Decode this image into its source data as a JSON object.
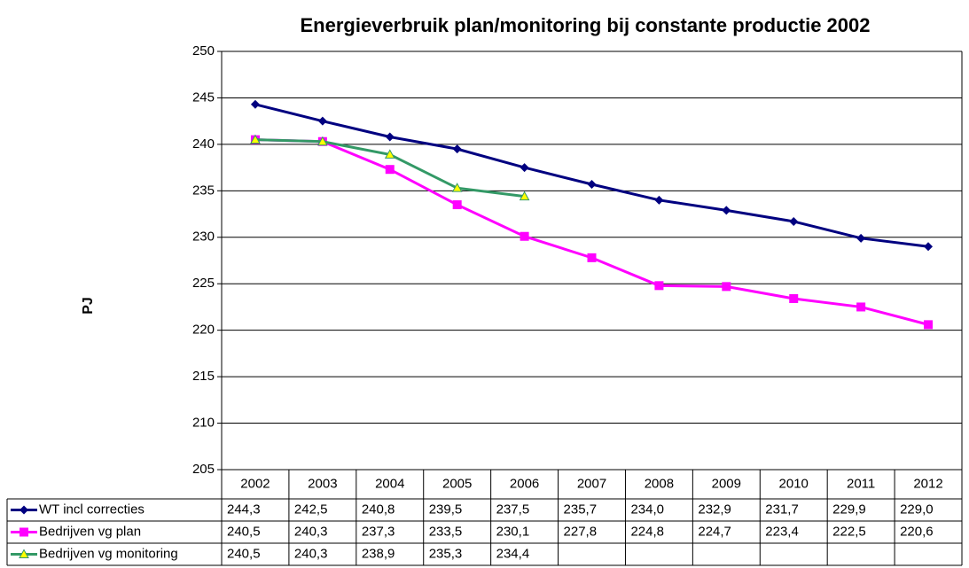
{
  "chart_data": {
    "type": "line",
    "title": "Energieverbruik plan/monitoring bij constante productie 2002",
    "y_label": "PJ",
    "categories": [
      "2002",
      "2003",
      "2004",
      "2005",
      "2006",
      "2007",
      "2008",
      "2009",
      "2010",
      "2011",
      "2012"
    ],
    "series": [
      {
        "name": "WT incl correcties",
        "color": "#000080",
        "marker": "diamond",
        "values": [
          244.3,
          242.5,
          240.8,
          239.5,
          237.5,
          235.7,
          234.0,
          232.9,
          231.7,
          229.9,
          229.0
        ],
        "value_labels": [
          "244,3",
          "242,5",
          "240,8",
          "239,5",
          "237,5",
          "235,7",
          "234,0",
          "232,9",
          "231,7",
          "229,9",
          "229,0"
        ]
      },
      {
        "name": "Bedrijven vg plan",
        "color": "#ff00ff",
        "marker": "square",
        "values": [
          240.5,
          240.3,
          237.3,
          233.5,
          230.1,
          227.8,
          224.8,
          224.7,
          223.4,
          222.5,
          220.6
        ],
        "value_labels": [
          "240,5",
          "240,3",
          "237,3",
          "233,5",
          "230,1",
          "227,8",
          "224,8",
          "224,7",
          "223,4",
          "222,5",
          "220,6"
        ]
      },
      {
        "name": "Bedrijven vg monitoring",
        "color": "#339966",
        "marker": "triangle",
        "values": [
          240.5,
          240.3,
          238.9,
          235.3,
          234.4,
          null,
          null,
          null,
          null,
          null,
          null
        ],
        "value_labels": [
          "240,5",
          "240,3",
          "238,9",
          "235,3",
          "234,4",
          null,
          null,
          null,
          null,
          null,
          null
        ]
      }
    ],
    "ylim": [
      205,
      250
    ],
    "yticks": [
      205,
      210,
      215,
      220,
      225,
      230,
      235,
      240,
      245,
      250
    ],
    "grid": true
  }
}
